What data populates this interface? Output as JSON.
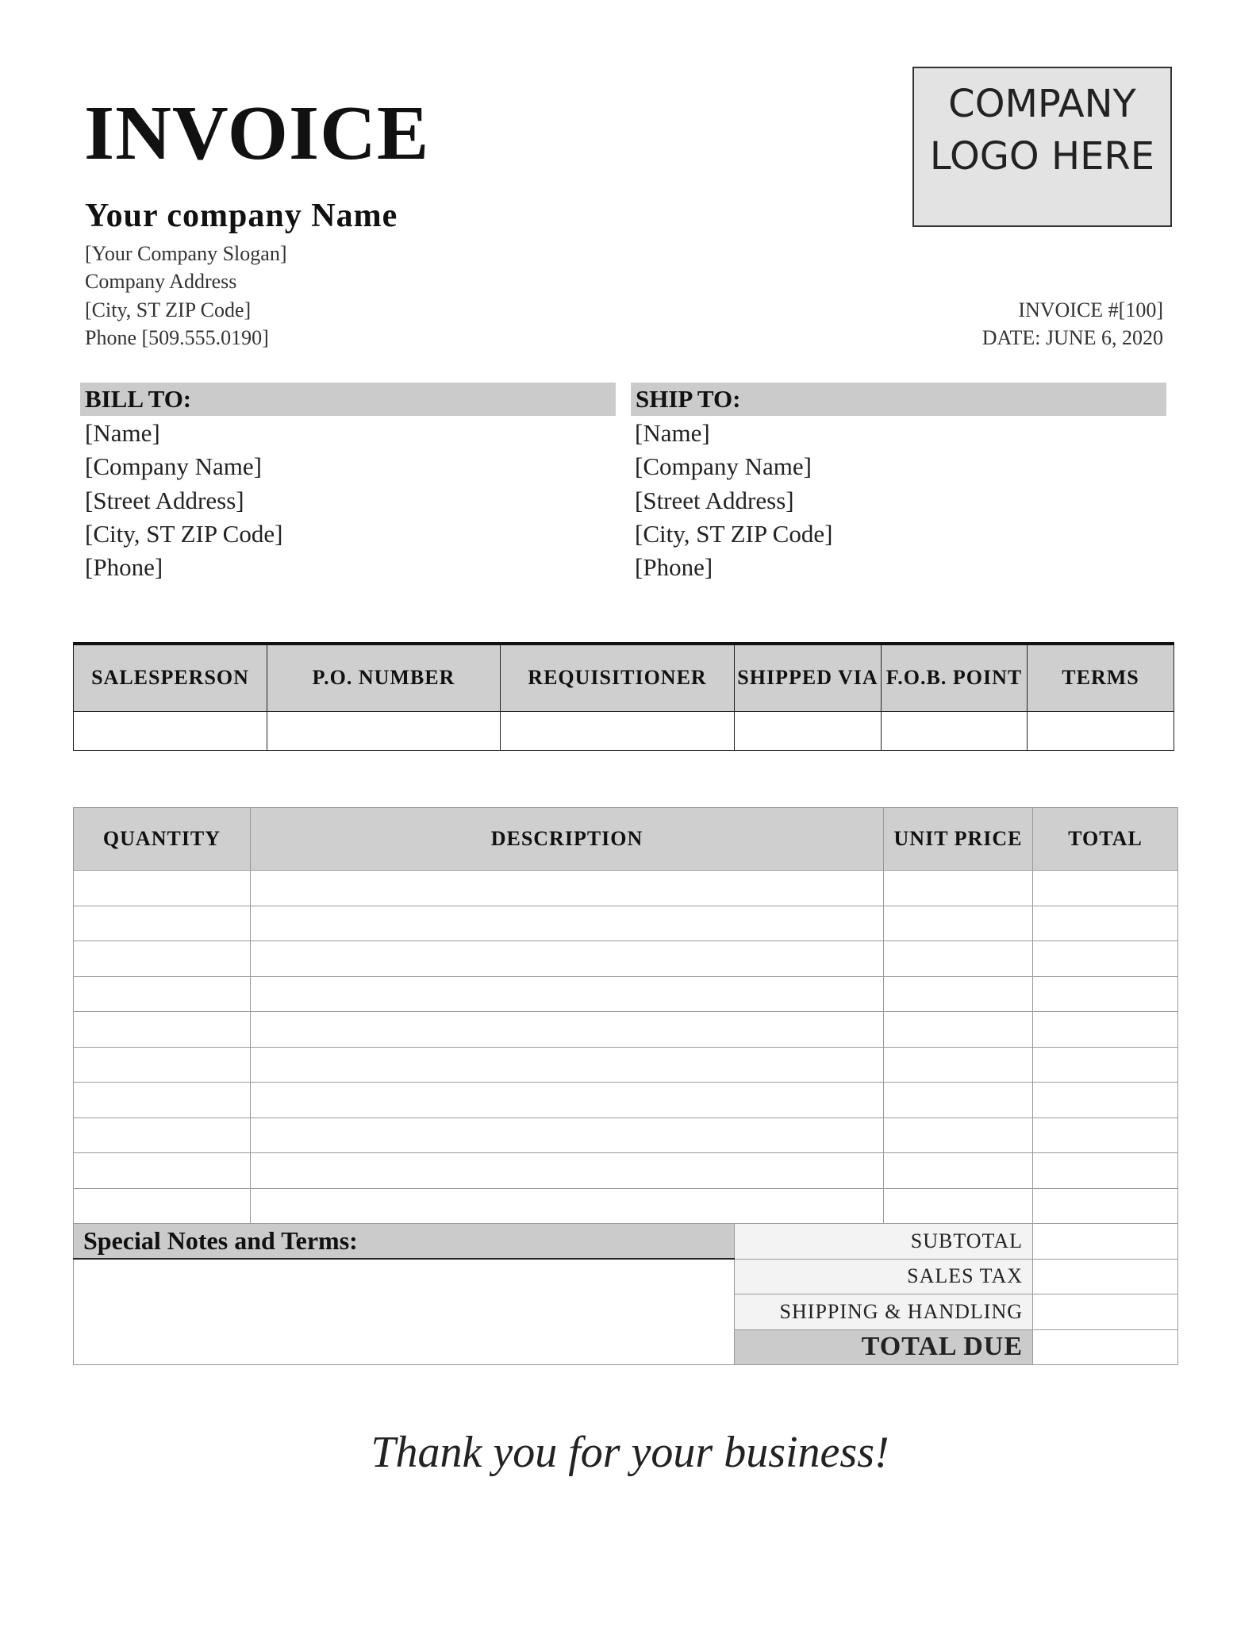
{
  "title": "INVOICE",
  "logo": {
    "line1": "COMPANY",
    "line2": "LOGO HERE"
  },
  "company": {
    "name": "Your company Name",
    "slogan": "[Your Company Slogan]",
    "address": "Company Address",
    "city": "[City, ST  ZIP Code]",
    "phone": "Phone [509.555.0190]"
  },
  "invoice": {
    "number": "INVOICE #[100]",
    "date": "DATE: JUNE 6, 2020"
  },
  "bill_to": {
    "heading": "BILL TO:",
    "lines": [
      "[Name]",
      "[Company Name]",
      "[Street Address]",
      "[City, ST  ZIP Code]",
      "[Phone]"
    ]
  },
  "ship_to": {
    "heading": "SHIP TO:",
    "lines": [
      "[Name]",
      "[Company Name]",
      "[Street Address]",
      "[City, ST  ZIP Code]",
      "[Phone]"
    ]
  },
  "order_table": {
    "headers": [
      "SALESPERSON",
      "P.O. NUMBER",
      "REQUISITIONER",
      "SHIPPED VIA",
      "F.O.B. POINT",
      "TERMS"
    ]
  },
  "items_table": {
    "headers": [
      "QUANTITY",
      "DESCRIPTION",
      "UNIT PRICE",
      "TOTAL"
    ]
  },
  "notes_heading": "Special Notes and Terms:",
  "summary": {
    "subtotal": "SUBTOTAL",
    "sales_tax": "SALES TAX",
    "shipping": "SHIPPING & HANDLING",
    "total_due": "TOTAL DUE"
  },
  "thanks": "Thank you for your business!"
}
